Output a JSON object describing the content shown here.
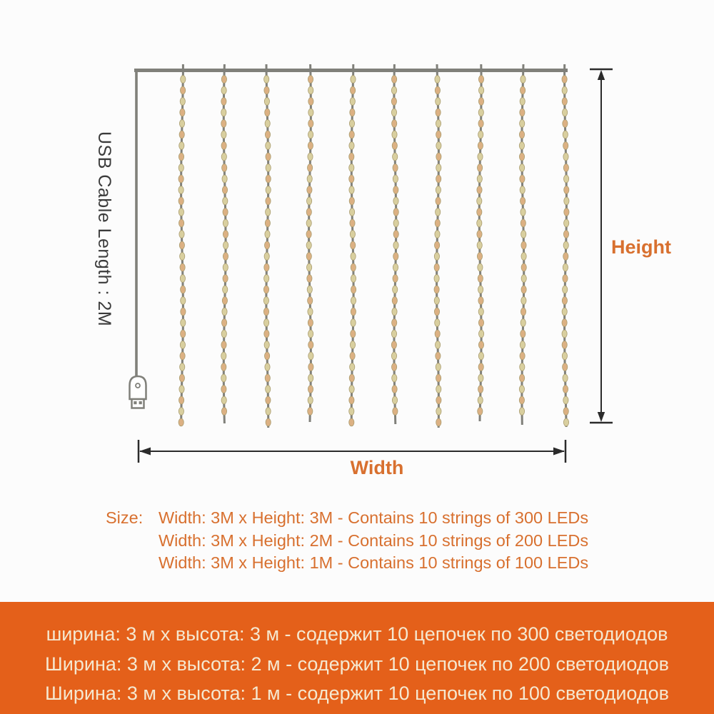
{
  "diagram": {
    "usb_cable_label": "USB Cable Length : 2M",
    "height_label": "Height",
    "width_label": "Width",
    "strings_count": 10,
    "beads_per_string": 31,
    "colors": {
      "wire_gray": "#80807a",
      "bead_fill_a": "#d9cf9f",
      "bead_fill_b": "#dcb183",
      "bead_stroke": "#a99c6f",
      "dimension_line": "#2b2b2b",
      "label_orange": "#d8702f"
    }
  },
  "sizes_en": {
    "label": "Size:",
    "lines": [
      "Width: 3M x Height: 3M - Contains 10 strings of 300 LEDs",
      "Width: 3M x Height: 2M - Contains 10 strings of 200 LEDs",
      "Width: 3M x Height: 1M - Contains 10 strings of 100 LEDs"
    ]
  },
  "sizes_ru": {
    "band_color": "#e4601a",
    "text_color": "#f5e8d0",
    "lines": [
      "ширина: 3 м х высота: 3 м - содержит 10 цепочек по 300 светодиодов",
      "Ширина: 3 м х высота: 2 м - содержит 10 цепочек по 200 светодиодов",
      "Ширина: 3 м х высота: 1 м - содержит 10 цепочек по 100 светодиодов"
    ]
  }
}
